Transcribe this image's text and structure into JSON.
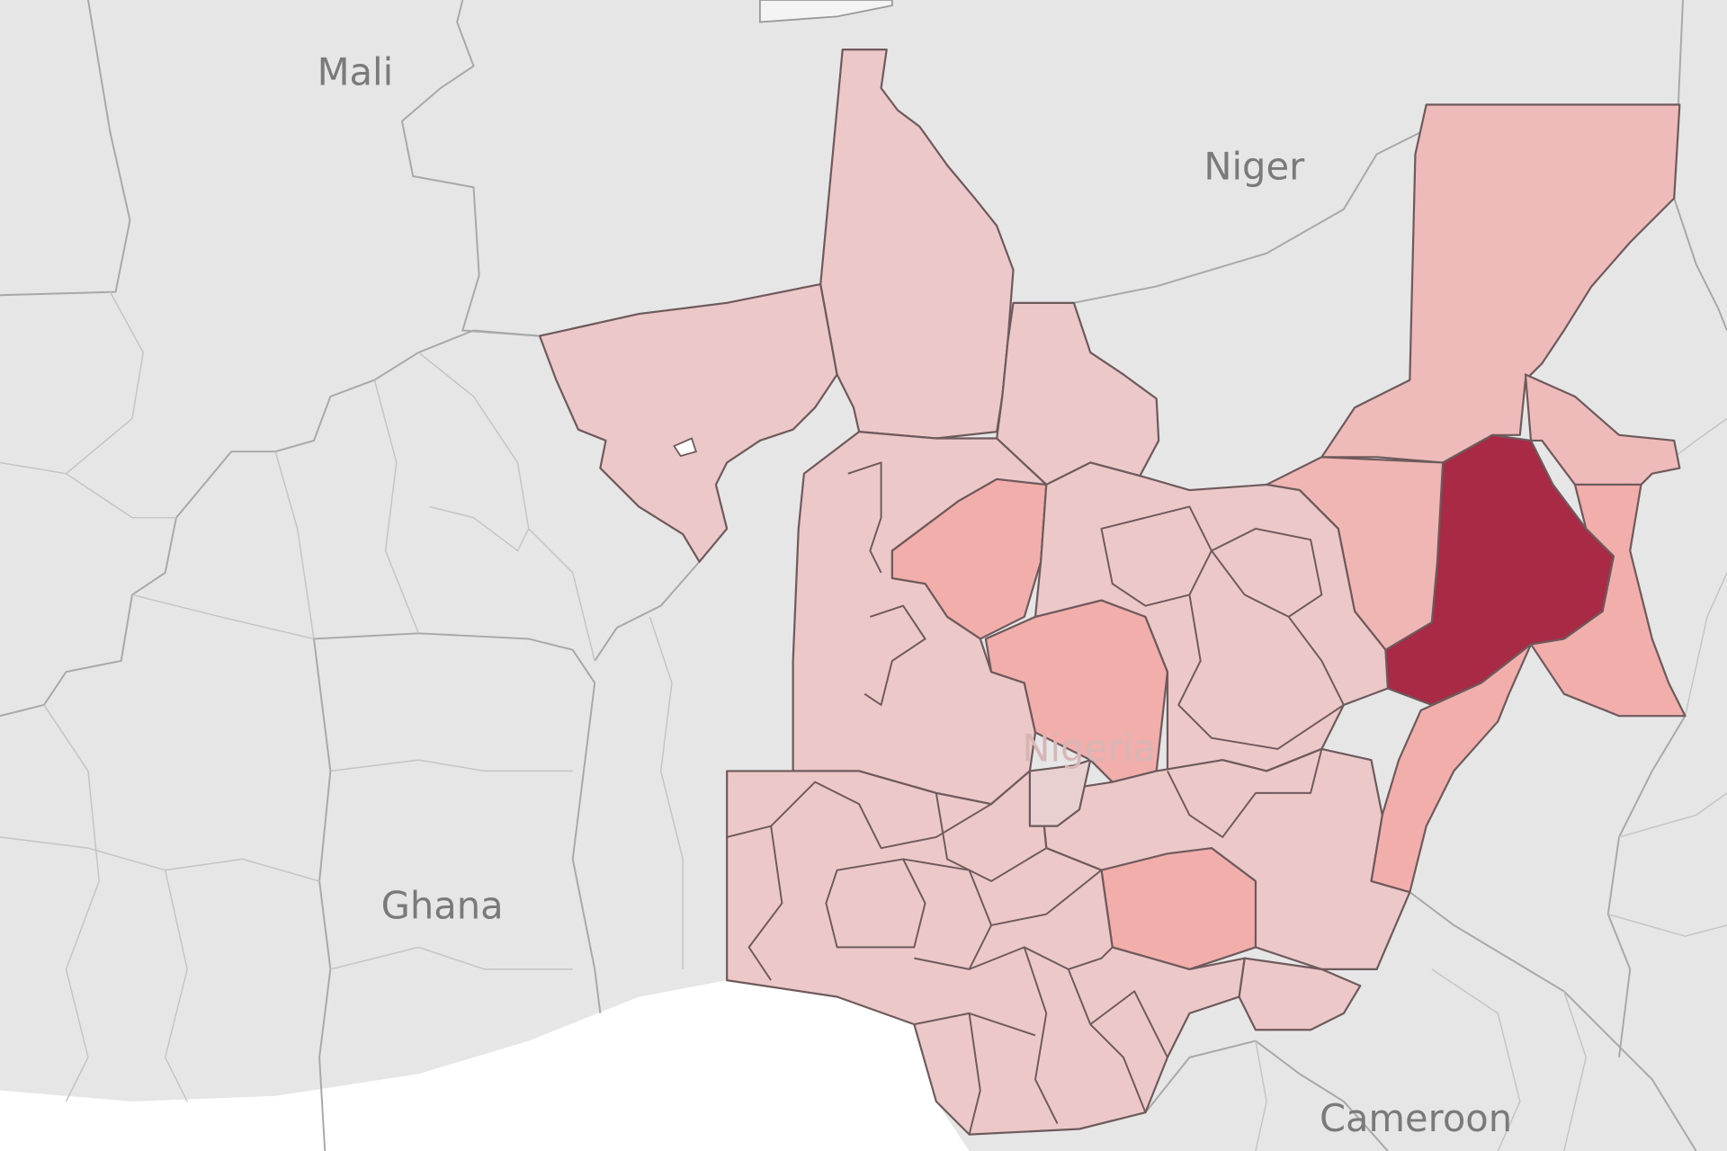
{
  "labels": {
    "mali": "Mali",
    "niger": "Niger",
    "ghana": "Ghana",
    "cameroon": "Cameroon",
    "nigeria": "Nigeria"
  },
  "colors": {
    "background_land": "#e9e9e9",
    "ocean": "#ffffff",
    "state_low": "#eccaca",
    "state_mid": "#f2aeab",
    "state_high": "#a82a45",
    "state_border": "#6e5a5c"
  }
}
